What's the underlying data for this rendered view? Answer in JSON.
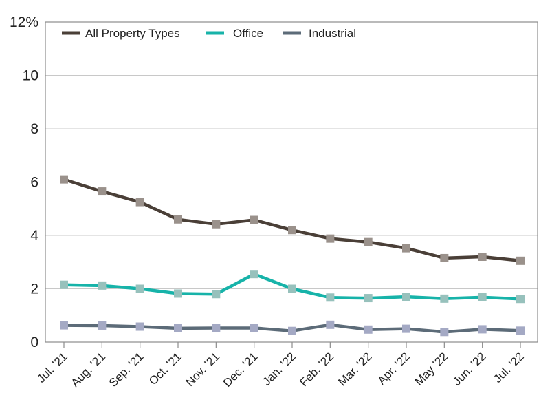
{
  "chart_data": {
    "type": "line",
    "title": "",
    "xlabel": "",
    "ylabel": "",
    "y_unit": "%",
    "ylim": [
      0,
      12
    ],
    "y_ticks": [
      0,
      2,
      4,
      6,
      8,
      10,
      12
    ],
    "y_tick_labels": [
      "0",
      "2",
      "4",
      "6",
      "8",
      "10",
      "12%"
    ],
    "grid": "horizontal",
    "legend_position": "top-left",
    "categories": [
      "Jul. ’21",
      "Aug. ’21",
      "Sep. ’21",
      "Oct. ’21",
      "Nov. ’21",
      "Dec. ’21",
      "Jan. ’22",
      "Feb. ’22",
      "Mar. ’22",
      "Apr. ’22",
      "May ’22",
      "Jun. ’22",
      "Jul. ’22"
    ],
    "series": [
      {
        "name": "All Property Types",
        "color": "#4a3f37",
        "marker_color": "#9a918b",
        "values": [
          6.1,
          5.65,
          5.25,
          4.6,
          4.42,
          4.58,
          4.2,
          3.88,
          3.75,
          3.52,
          3.15,
          3.2,
          3.05
        ]
      },
      {
        "name": "Office",
        "color": "#17b3a9",
        "marker_color": "#97c1bc",
        "values": [
          2.15,
          2.12,
          2.0,
          1.82,
          1.8,
          2.55,
          2.0,
          1.67,
          1.65,
          1.7,
          1.63,
          1.68,
          1.62
        ]
      },
      {
        "name": "Industrial",
        "color": "#5c6b78",
        "marker_color": "#a4a9c4",
        "values": [
          0.63,
          0.62,
          0.58,
          0.52,
          0.53,
          0.53,
          0.42,
          0.65,
          0.47,
          0.5,
          0.38,
          0.48,
          0.43
        ]
      }
    ]
  }
}
